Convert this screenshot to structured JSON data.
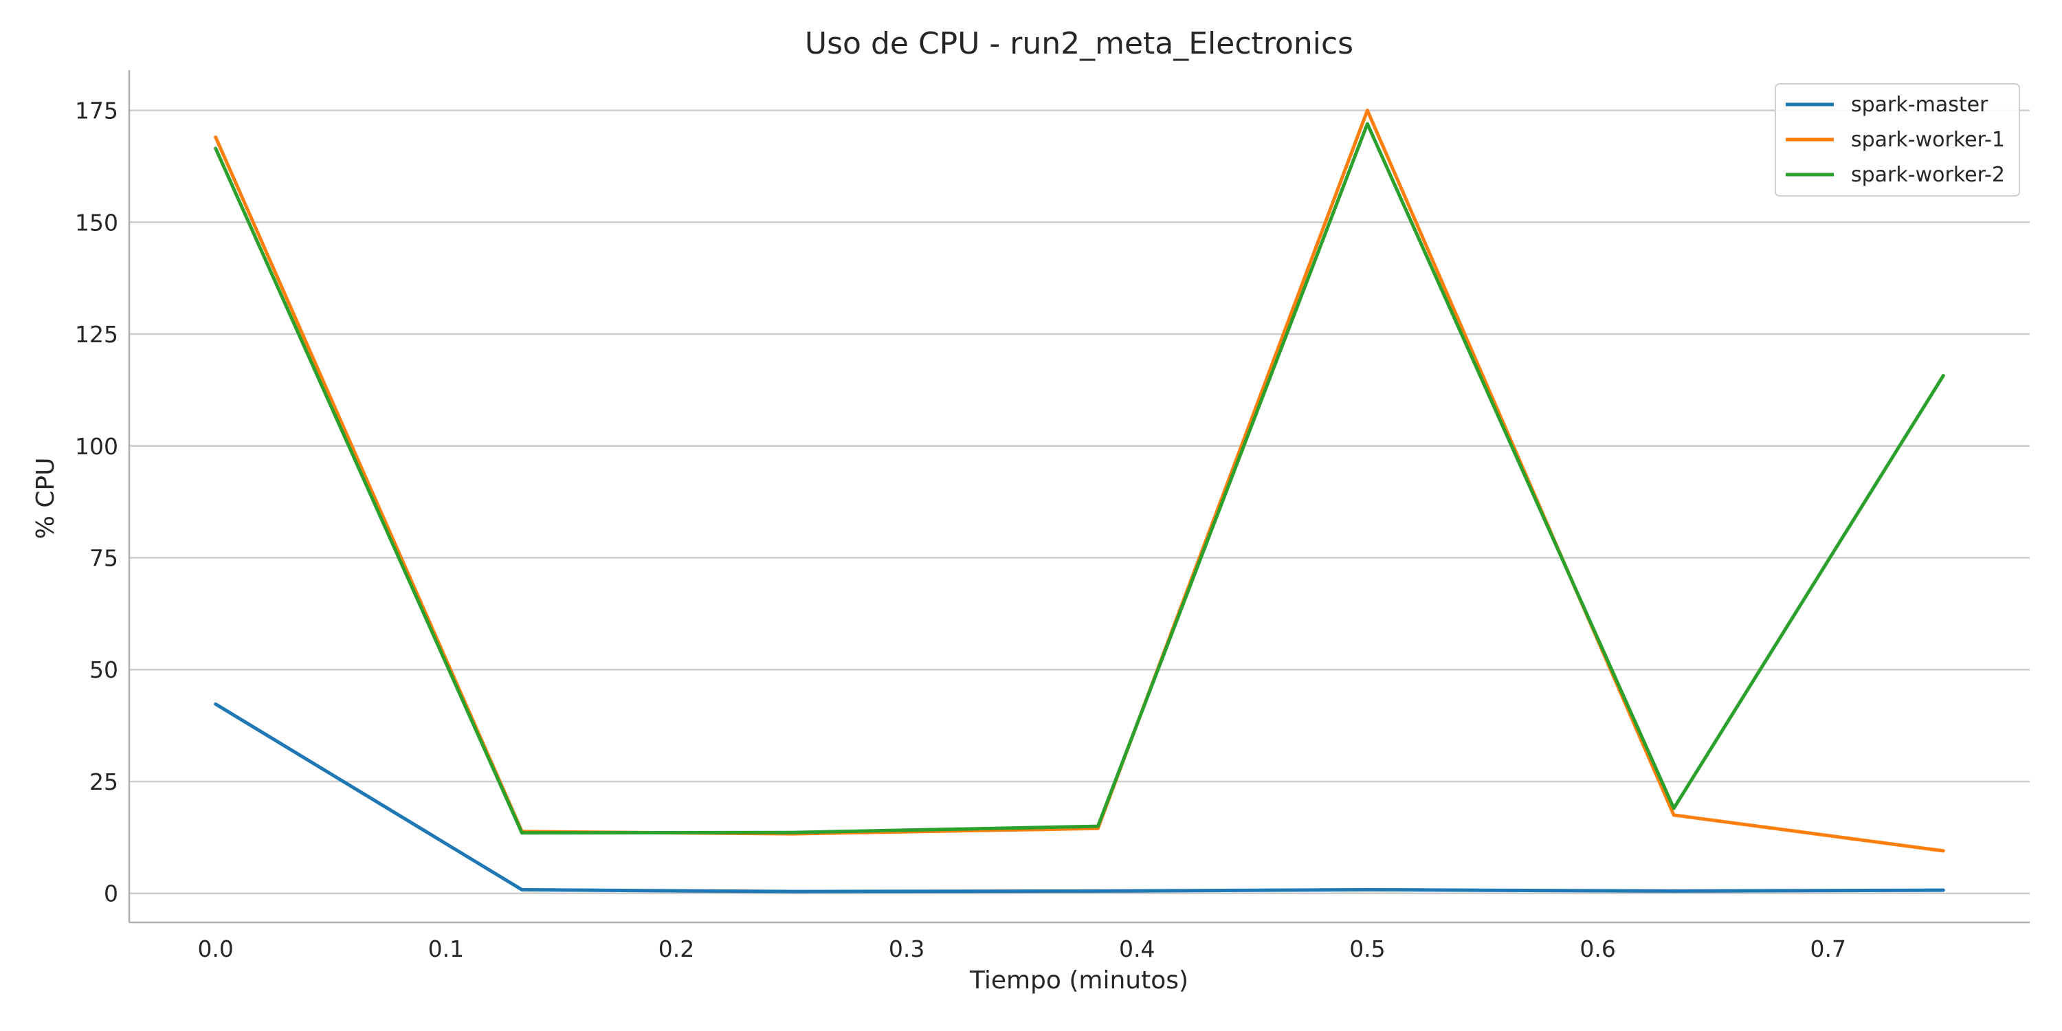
{
  "chart_data": {
    "type": "line",
    "title": "Uso de CPU - run2_meta_Electronics",
    "xlabel": "Tiempo (minutos)",
    "ylabel": "% CPU",
    "xlim": [
      -0.0375,
      0.7875
    ],
    "ylim": [
      -6.5,
      184
    ],
    "xticks": [
      0.0,
      0.1,
      0.2,
      0.3,
      0.4,
      0.5,
      0.6,
      0.7
    ],
    "xtick_labels": [
      "0.0",
      "0.1",
      "0.2",
      "0.3",
      "0.4",
      "0.5",
      "0.6",
      "0.7"
    ],
    "yticks": [
      0,
      25,
      50,
      75,
      100,
      125,
      150,
      175
    ],
    "ytick_labels": [
      "0",
      "25",
      "50",
      "75",
      "100",
      "125",
      "150",
      "175"
    ],
    "grid": "horizontal",
    "legend_position": "top-right",
    "x": [
      0.0,
      0.133,
      0.25,
      0.383,
      0.5,
      0.633,
      0.75
    ],
    "series": [
      {
        "name": "spark-master",
        "color": "#1f77b4",
        "values": [
          42.3,
          0.8,
          0.4,
          0.5,
          0.8,
          0.5,
          0.7
        ]
      },
      {
        "name": "spark-worker-1",
        "color": "#ff7f0e",
        "values": [
          169.0,
          13.8,
          13.3,
          14.5,
          175.0,
          17.5,
          9.5
        ]
      },
      {
        "name": "spark-worker-2",
        "color": "#2ca02c",
        "values": [
          166.5,
          13.5,
          13.6,
          15.0,
          172.0,
          19.0,
          115.7
        ]
      }
    ]
  }
}
